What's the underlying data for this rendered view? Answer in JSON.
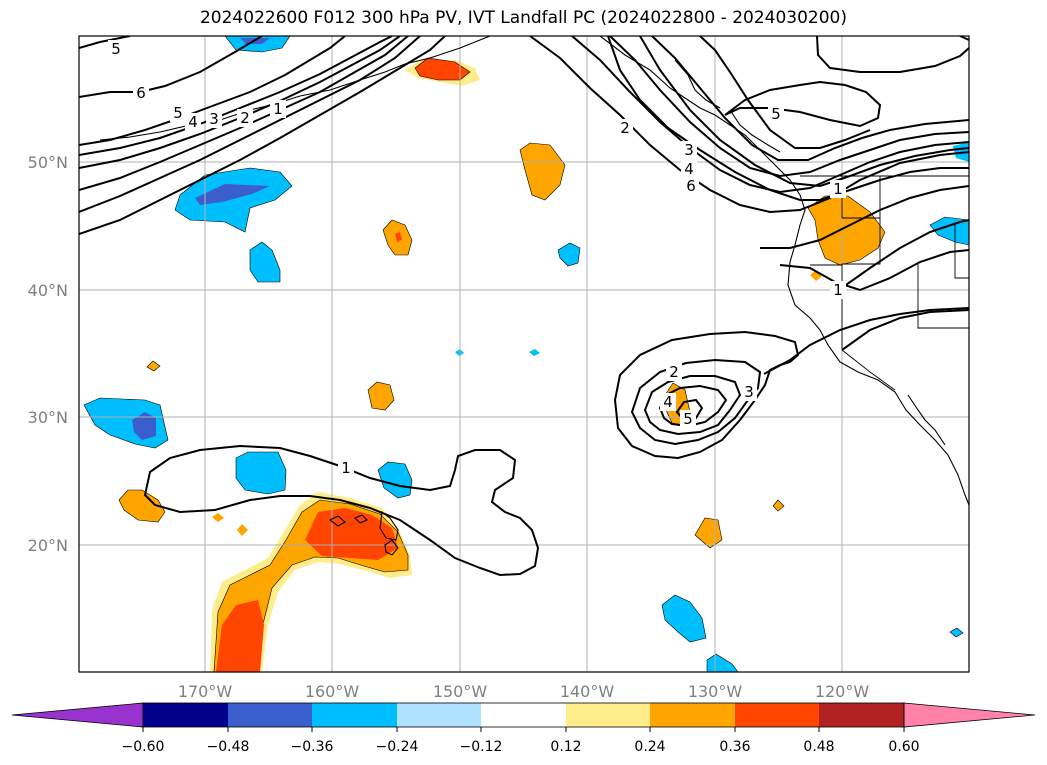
{
  "title": "2024022600 F012 300 hPa PV, IVT Landfall PC (2024022800 - 2024030200)",
  "latitude_labels": [
    "50°N",
    "40°N",
    "30°N",
    "20°N"
  ],
  "longitude_labels": [
    "170°W",
    "160°W",
    "150°W",
    "140°W",
    "130°W",
    "120°W"
  ],
  "contour_labels": [
    "5",
    "6",
    "5",
    "4",
    "3",
    "2",
    "1",
    "1",
    "2",
    "3",
    "4",
    "6",
    "5",
    "1",
    "1",
    "2",
    "3",
    "4",
    "5"
  ],
  "colorbar": {
    "tick_labels": [
      "−0.60",
      "−0.48",
      "−0.36",
      "−0.24",
      "−0.12",
      "0.12",
      "0.24",
      "0.36",
      "0.48",
      "0.60"
    ],
    "colors": [
      "#9a32cd",
      "#00008b",
      "#3a5fcd",
      "#00bfff",
      "#b0e2ff",
      "#ffffff",
      "#ffec8b",
      "#ffa500",
      "#ff4500",
      "#b22222",
      "#ff82ab"
    ]
  }
}
